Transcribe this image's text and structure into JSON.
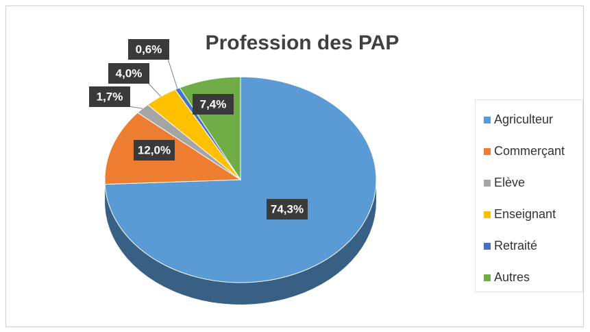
{
  "chart_data": {
    "type": "pie",
    "title": "Profession des PAP",
    "categories": [
      "Agriculteur",
      "Commerçant",
      "Elève",
      "Enseignant",
      "Retraité",
      "Autres"
    ],
    "values": [
      74.3,
      12.0,
      1.7,
      4.0,
      0.6,
      7.4
    ],
    "value_labels": [
      "74,3%",
      "12,0%",
      "1,7%",
      "4,0%",
      "0,6%",
      "7,4%"
    ],
    "colors": [
      "#5b9bd5",
      "#ed7d31",
      "#a5a5a5",
      "#ffc000",
      "#4472c4",
      "#70ad47"
    ],
    "legend": "right"
  }
}
